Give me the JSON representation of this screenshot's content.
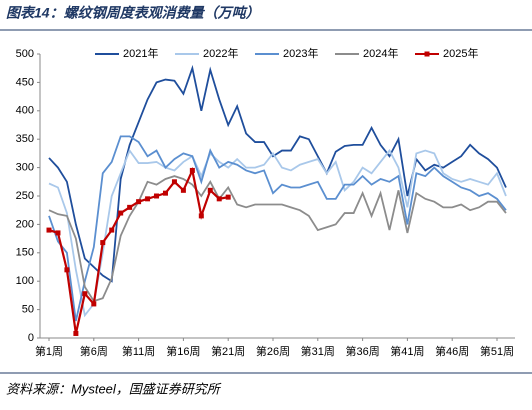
{
  "chart_data": {
    "type": "line",
    "title": "图表14：螺纹钢周度表观消费量（万吨）",
    "source": "资料来源：Mysteel，国盛证券研究所",
    "categories": [
      "第1周",
      null,
      null,
      null,
      null,
      "第6周",
      null,
      null,
      null,
      null,
      "第11周",
      null,
      null,
      null,
      null,
      "第16周",
      null,
      null,
      null,
      null,
      "第21周",
      null,
      null,
      null,
      null,
      "第26周",
      null,
      null,
      null,
      null,
      "第31周",
      null,
      null,
      null,
      null,
      "第36周",
      null,
      null,
      null,
      null,
      "第41周",
      null,
      null,
      null,
      null,
      "第46周",
      null,
      null,
      null,
      null,
      "第51周",
      null
    ],
    "ylim": [
      0,
      500
    ],
    "yticks": [
      0,
      50,
      100,
      150,
      200,
      250,
      300,
      350,
      400,
      450,
      500
    ],
    "grid": false,
    "legend": "top",
    "series": [
      {
        "name": "2021年",
        "color": "#1f4e9c",
        "marker": false,
        "values": [
          317,
          300,
          275,
          200,
          140,
          125,
          110,
          100,
          280,
          340,
          380,
          420,
          450,
          455,
          453,
          430,
          475,
          400,
          472,
          420,
          375,
          408,
          360,
          345,
          345,
          320,
          330,
          330,
          355,
          350,
          320,
          290,
          328,
          338,
          340,
          340,
          370,
          340,
          320,
          350,
          250,
          315,
          295,
          305,
          300,
          310,
          320,
          340,
          325,
          315,
          300,
          265
        ]
      },
      {
        "name": "2022年",
        "color": "#a9c8ea",
        "marker": false,
        "values": [
          272,
          265,
          220,
          120,
          40,
          60,
          150,
          250,
          290,
          330,
          308,
          308,
          310,
          300,
          295,
          310,
          320,
          285,
          325,
          310,
          300,
          315,
          300,
          300,
          305,
          325,
          300,
          295,
          305,
          310,
          315,
          290,
          310,
          260,
          275,
          300,
          290,
          310,
          330,
          300,
          230,
          325,
          330,
          325,
          290,
          280,
          275,
          280,
          275,
          270,
          290,
          250
        ]
      },
      {
        "name": "2023年",
        "color": "#5b8fd0",
        "marker": false,
        "values": [
          215,
          170,
          150,
          30,
          100,
          160,
          290,
          310,
          355,
          355,
          345,
          320,
          330,
          300,
          315,
          325,
          320,
          275,
          330,
          300,
          310,
          305,
          295,
          290,
          295,
          255,
          270,
          265,
          265,
          270,
          275,
          245,
          245,
          270,
          270,
          285,
          270,
          280,
          275,
          285,
          200,
          290,
          285,
          300,
          285,
          275,
          265,
          260,
          250,
          255,
          245,
          225
        ]
      },
      {
        "name": "2024年",
        "color": "#8c8c8c",
        "marker": false,
        "values": [
          225,
          218,
          215,
          175,
          90,
          65,
          70,
          105,
          180,
          215,
          240,
          275,
          270,
          280,
          285,
          280,
          270,
          250,
          275,
          245,
          265,
          235,
          230,
          235,
          235,
          235,
          235,
          230,
          225,
          215,
          190,
          195,
          200,
          220,
          220,
          255,
          215,
          255,
          190,
          260,
          185,
          255,
          245,
          240,
          230,
          230,
          235,
          225,
          230,
          240,
          240,
          220
        ]
      },
      {
        "name": "2025年",
        "color": "#c00000",
        "marker": true,
        "values": [
          190,
          185,
          120,
          8,
          78,
          60,
          168,
          190,
          220,
          230,
          240,
          245,
          250,
          255,
          275,
          260,
          295,
          215,
          260,
          245,
          248,
          null,
          null,
          null,
          null,
          null,
          null,
          null,
          null,
          null,
          null,
          null,
          null,
          null,
          null,
          null,
          null,
          null,
          null,
          null,
          null,
          null,
          null,
          null,
          null,
          null,
          null,
          null,
          null,
          null,
          null,
          null
        ]
      }
    ]
  }
}
